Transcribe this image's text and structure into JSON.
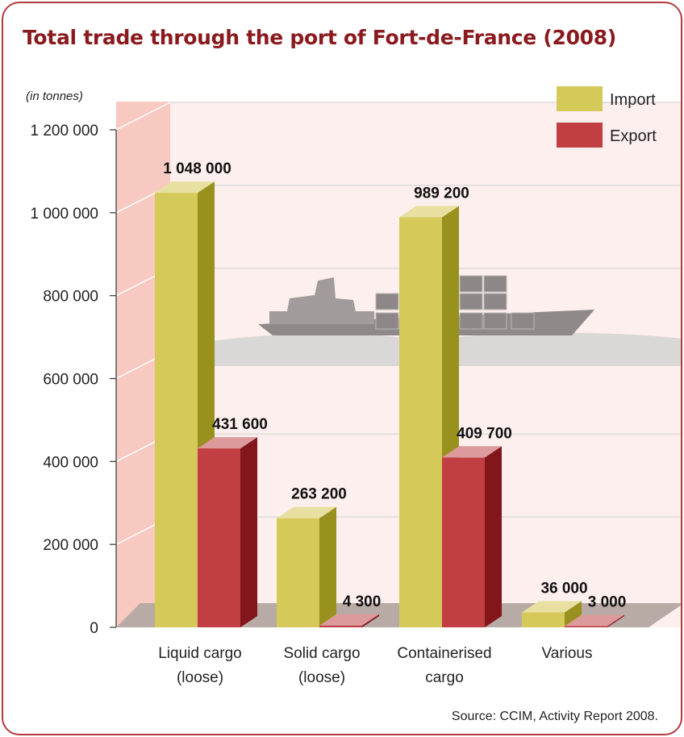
{
  "title": "Total trade through the port of Fort-de-France (2008)",
  "unit_label": "(in tonnes)",
  "source": "Source: CCIM, Activity Report 2008.",
  "colors": {
    "import_front": "#d4c959",
    "import_side": "#99911e",
    "import_top": "#e8e0a0",
    "export_front": "#c13e42",
    "export_side": "#82161a",
    "export_top": "#dd9a9c",
    "frame": "#b23a3e",
    "title": "#8a1a1e"
  },
  "chart_data": {
    "type": "bar",
    "title": "Total trade through the port of Fort-de-France (2008)",
    "ylabel": "(in tonnes)",
    "ylim": [
      0,
      1200000
    ],
    "yticks": [
      0,
      200000,
      400000,
      600000,
      800000,
      1000000,
      1200000
    ],
    "ytick_labels": [
      "0",
      "200 000",
      "400 000",
      "600 000",
      "800 000",
      "1 000 000",
      "1 200 000"
    ],
    "categories": [
      "Liquid cargo\n(loose)",
      "Solid cargo\n(loose)",
      "Containerised\ncargo",
      "Various"
    ],
    "series": [
      {
        "name": "Import",
        "values": [
          1048000,
          263200,
          989200,
          36000
        ],
        "labels": [
          "1 048 000",
          "263 200",
          "989 200",
          "36 000"
        ]
      },
      {
        "name": "Export",
        "values": [
          431600,
          4300,
          409700,
          3000
        ],
        "labels": [
          "431 600",
          "4 300",
          "409 700",
          "3 000"
        ]
      }
    ],
    "legend": "top-right",
    "grid": true
  }
}
